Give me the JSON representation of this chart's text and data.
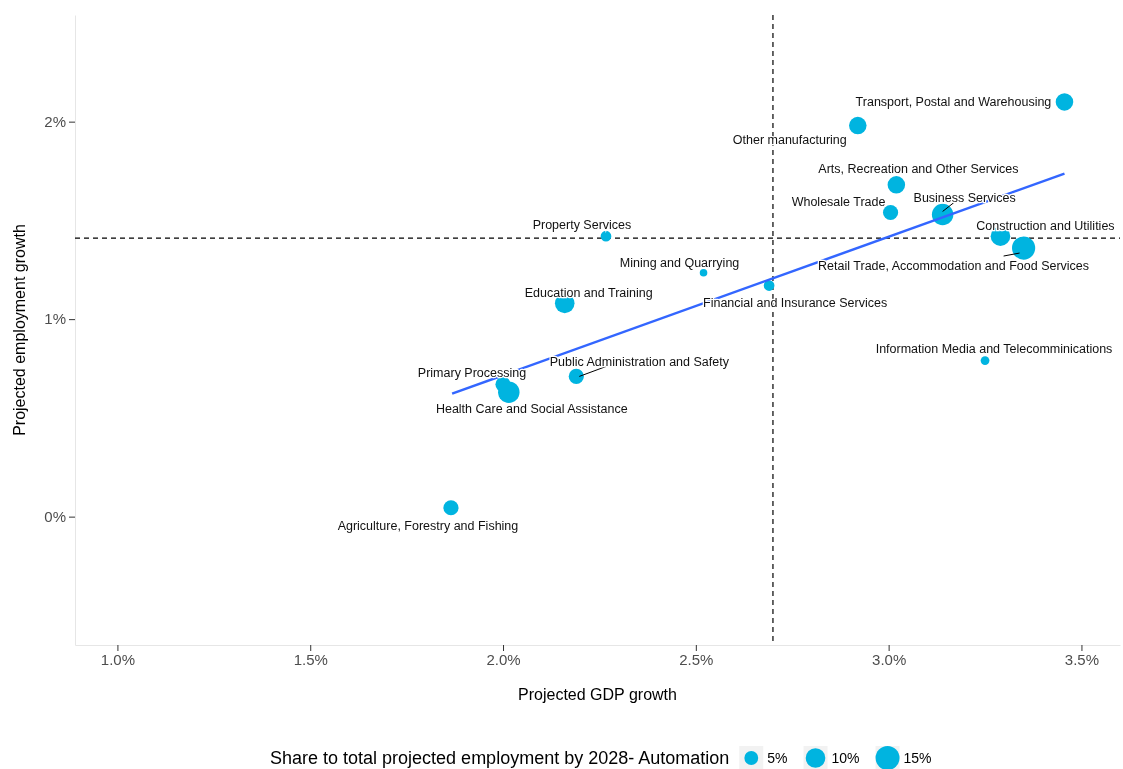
{
  "chart_data": {
    "type": "bubble",
    "xlabel": "Projected GDP growth",
    "ylabel": "Projected employment growth",
    "legend_title": "Share to total projected employment by 2028- Automation",
    "grid": false,
    "xlim": [
      0.89,
      3.6
    ],
    "ylim": [
      -0.65,
      2.54
    ],
    "xticks": [
      {
        "value": 1.0,
        "label": "1.0%"
      },
      {
        "value": 1.5,
        "label": "1.5%"
      },
      {
        "value": 2.0,
        "label": "2.0%"
      },
      {
        "value": 2.5,
        "label": "2.5%"
      },
      {
        "value": 3.0,
        "label": "3.0%"
      },
      {
        "value": 3.5,
        "label": "3.5%"
      }
    ],
    "yticks": [
      {
        "value": 0,
        "label": "0%"
      },
      {
        "value": 1,
        "label": "1%"
      },
      {
        "value": 2,
        "label": "2%"
      }
    ],
    "size_legend": [
      {
        "value": 5,
        "label": "5%"
      },
      {
        "value": 10,
        "label": "10%"
      },
      {
        "value": 15,
        "label": "15%"
      }
    ],
    "ref_lines": [
      {
        "axis": "x",
        "value": 2.7,
        "line_style": "dashed",
        "color": "#000000"
      },
      {
        "axis": "y",
        "value": 1.41,
        "line_style": "dashed",
        "color": "#000000"
      }
    ],
    "series": [
      {
        "marker": "circle",
        "color": "#00b4e0",
        "x": [
          3.456,
          2.92,
          3.02,
          3.005,
          3.14,
          2.267,
          3.29,
          3.35,
          2.52,
          2.69,
          2.16,
          3.25,
          2.19,
          2.0,
          2.015,
          1.865
        ],
        "values": [
          2.1,
          1.98,
          1.68,
          1.54,
          1.53,
          1.42,
          1.42,
          1.36,
          1.235,
          1.17,
          1.08,
          0.79,
          0.71,
          0.67,
          0.63,
          0.045
        ],
        "sizes": [
          8,
          8,
          8,
          6,
          12,
          3,
          10,
          14,
          1.5,
          3,
          10,
          2,
          6,
          6,
          12,
          6
        ]
      },
      {
        "type": "line",
        "color": "#3366ff",
        "x": [
          1.868,
          3.456
        ],
        "values": [
          0.623,
          1.737
        ]
      }
    ],
    "annotations": [
      {
        "text": "Transport, Postal and Warehousing",
        "x": 3.456,
        "y": 2.1
      },
      {
        "text": "Other manufacturing",
        "x": 2.92,
        "y": 1.98
      },
      {
        "text": "Arts, Recreation and Other Services",
        "x": 3.02,
        "y": 1.68
      },
      {
        "text": "Wholesale Trade",
        "x": 3.005,
        "y": 1.54
      },
      {
        "text": "Business Services",
        "x": 3.14,
        "y": 1.53
      },
      {
        "text": "Property Services",
        "x": 2.267,
        "y": 1.42
      },
      {
        "text": "Construction and Utilities",
        "x": 3.29,
        "y": 1.42
      },
      {
        "text": "Retail Trade,  Accommodation and Food Services",
        "x": 3.35,
        "y": 1.36
      },
      {
        "text": "Mining and Quarrying",
        "x": 2.52,
        "y": 1.235
      },
      {
        "text": "Financial and Insurance Services",
        "x": 2.69,
        "y": 1.17
      },
      {
        "text": "Education and Training",
        "x": 2.16,
        "y": 1.08
      },
      {
        "text": "Information Media and Telecomminications",
        "x": 3.25,
        "y": 0.79
      },
      {
        "text": "Public Administration and Safety",
        "x": 2.19,
        "y": 0.71
      },
      {
        "text": "Primary Processing",
        "x": 2.0,
        "y": 0.67
      },
      {
        "text": "Health Care and Social Assistance",
        "x": 2.015,
        "y": 0.63
      },
      {
        "text": "Agriculture, Forestry and Fishing",
        "x": 1.865,
        "y": 0.045
      }
    ]
  }
}
